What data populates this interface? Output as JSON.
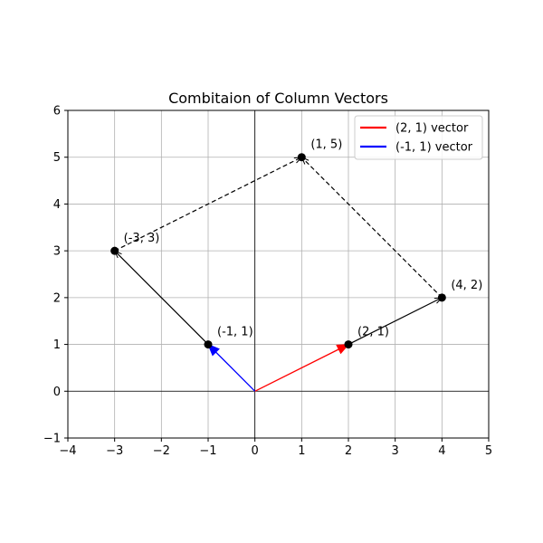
{
  "chart_data": {
    "type": "vector",
    "title": "Combitaion of Column Vectors",
    "xlabel": "",
    "ylabel": "",
    "xlim": [
      -4,
      5
    ],
    "ylim": [
      -1,
      6
    ],
    "xticks": [
      "−4",
      "−3",
      "−2",
      "−1",
      "0",
      "1",
      "2",
      "3",
      "4",
      "5"
    ],
    "yticks": [
      "−1",
      "0",
      "1",
      "2",
      "3",
      "4",
      "5",
      "6"
    ],
    "grid": true,
    "legend_position": "top-right",
    "series": [
      {
        "name": "(2, 1) vector",
        "color": "#ff0000",
        "from": [
          0,
          0
        ],
        "to": [
          2,
          1
        ]
      },
      {
        "name": "(-1, 1) vector",
        "color": "#0000ff",
        "from": [
          0,
          0
        ],
        "to": [
          -1,
          1
        ]
      }
    ],
    "segments": [
      {
        "from": [
          2,
          1
        ],
        "to": [
          4,
          2
        ],
        "style": "solid",
        "color": "#000000"
      },
      {
        "from": [
          -1,
          1
        ],
        "to": [
          -3,
          3
        ],
        "style": "solid",
        "color": "#000000"
      },
      {
        "from": [
          4,
          2
        ],
        "to": [
          1,
          5
        ],
        "style": "dashed",
        "color": "#000000"
      },
      {
        "from": [
          -3,
          3
        ],
        "to": [
          1,
          5
        ],
        "style": "dashed",
        "color": "#000000"
      }
    ],
    "points": [
      {
        "x": 2,
        "y": 1,
        "label": "(2, 1)"
      },
      {
        "x": -1,
        "y": 1,
        "label": "(-1, 1)"
      },
      {
        "x": 4,
        "y": 2,
        "label": "(4, 2)"
      },
      {
        "x": -3,
        "y": 3,
        "label": "(-3, 3)"
      },
      {
        "x": 1,
        "y": 5,
        "label": "(1, 5)"
      }
    ]
  }
}
